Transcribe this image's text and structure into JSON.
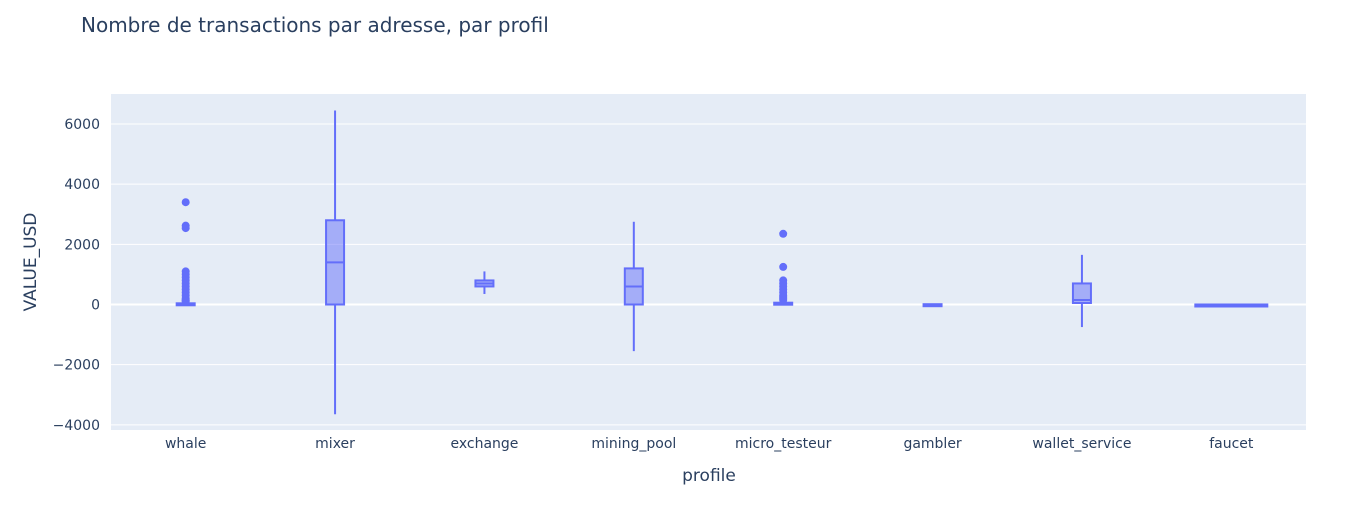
{
  "chart_data": {
    "type": "box",
    "title": "Nombre de transactions par adresse, par profil",
    "xlabel": "profile",
    "ylabel": "VALUE_USD",
    "ylim": [
      -4300,
      7000
    ],
    "yticks": [
      -4000,
      -2000,
      0,
      2000,
      4000,
      6000
    ],
    "ytick_labels": [
      "−4000",
      "−2000",
      "0",
      "2000",
      "4000",
      "6000"
    ],
    "grid": true,
    "categories": [
      "whale",
      "mixer",
      "exchange",
      "mining_pool",
      "micro_testeur",
      "gambler",
      "wallet_service",
      "faucet"
    ],
    "series": [
      {
        "boxes": [
          {
            "category": "whale",
            "min": -20,
            "q1": 0,
            "median": 10,
            "q3": 40,
            "max": 90,
            "outliers": [
              3400,
              2620,
              2540,
              1100,
              1000,
              900,
              800,
              700,
              600,
              500,
              400,
              300,
              200,
              150,
              120,
              100
            ]
          },
          {
            "category": "mixer",
            "min": -3650,
            "q1": 0,
            "median": 1400,
            "q3": 2800,
            "max": 6450,
            "outliers": []
          },
          {
            "category": "exchange",
            "min": 350,
            "q1": 600,
            "median": 700,
            "q3": 800,
            "max": 1100,
            "outliers": []
          },
          {
            "category": "mining_pool",
            "min": -1550,
            "q1": 0,
            "median": 600,
            "q3": 1200,
            "max": 2750,
            "outliers": []
          },
          {
            "category": "micro_testeur",
            "min": -20,
            "q1": 0,
            "median": 20,
            "q3": 60,
            "max": 120,
            "outliers": [
              2350,
              1250,
              800,
              700,
              600,
              500,
              400,
              300,
              250,
              200,
              150
            ]
          },
          {
            "category": "gambler",
            "min": -20,
            "q1": -5,
            "median": 0,
            "q3": 10,
            "max": 30,
            "outliers": []
          },
          {
            "category": "wallet_service",
            "min": -750,
            "q1": 50,
            "median": 150,
            "q3": 700,
            "max": 1650,
            "outliers": []
          },
          {
            "category": "faucet",
            "min": 0,
            "q1": 0,
            "median": 0,
            "q3": 0,
            "max": 0,
            "outliers": []
          }
        ]
      }
    ],
    "colors": {
      "box_line": "#636efa",
      "box_fill": "#636efa",
      "plot_bg": "#e5ecf6",
      "grid": "#ffffff",
      "text": "#2a3f5f"
    }
  }
}
